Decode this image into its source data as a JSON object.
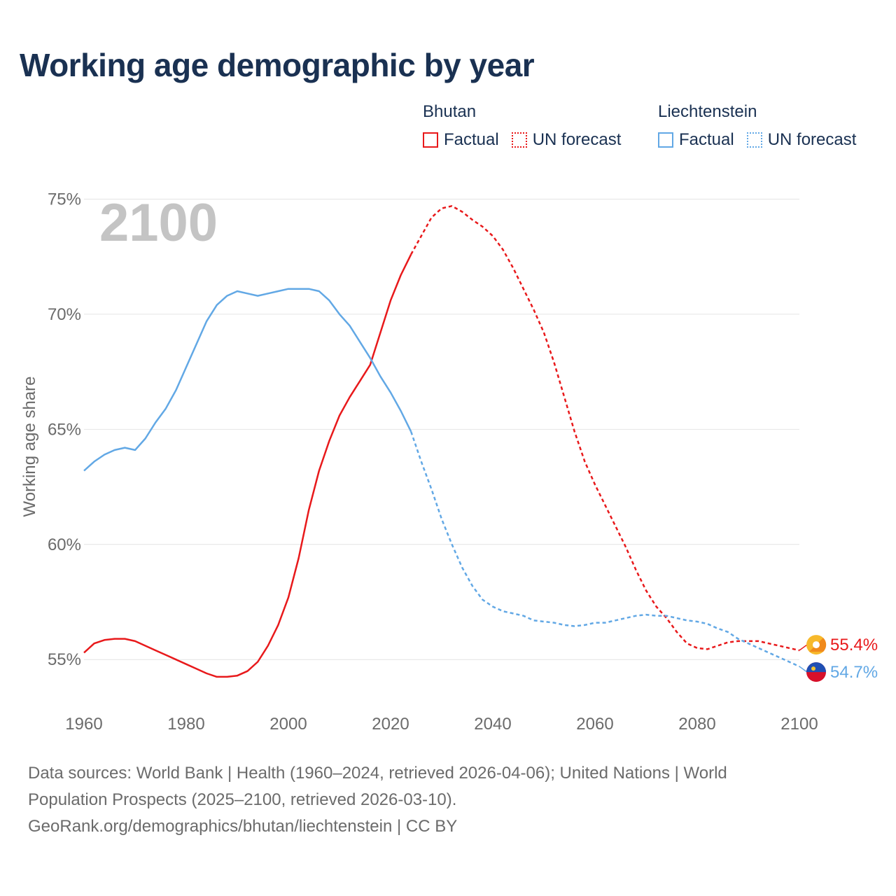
{
  "title": "Working age demographic by year",
  "legend": {
    "groups": [
      {
        "name": "Bhutan",
        "color": "#e8191b",
        "factual": "Factual",
        "forecast": "UN forecast"
      },
      {
        "name": "Liechtenstein",
        "color": "#62a8e5",
        "factual": "Factual",
        "forecast": "UN forecast"
      }
    ]
  },
  "footer": {
    "line1": "Data sources: World Bank | Health (1960–2024, retrieved 2026-04-06); United Nations | World",
    "line2": "Population Prospects (2025–2100, retrieved 2026-03-10).",
    "line3": "GeoRank.org/demographics/bhutan/liechtenstein | CC BY"
  },
  "chart_data": {
    "type": "line",
    "title": "Working age demographic by year",
    "year_watermark": "2100",
    "xlabel": "",
    "ylabel": "Working age share",
    "xlim": [
      1960,
      2100
    ],
    "ylim": [
      53,
      75.5
    ],
    "x_ticks": [
      1960,
      1980,
      2000,
      2020,
      2040,
      2060,
      2080,
      2100
    ],
    "y_ticks": [
      {
        "value": 55,
        "label": "55%"
      },
      {
        "value": 60,
        "label": "60%"
      },
      {
        "value": 65,
        "label": "65%"
      },
      {
        "value": 70,
        "label": "70%"
      },
      {
        "value": 75,
        "label": "75%"
      }
    ],
    "grid": true,
    "series": [
      {
        "name": "Bhutan",
        "color": "#e8191b",
        "end_label": "55.4%",
        "factual": [
          [
            1960,
            55.3
          ],
          [
            1962,
            55.7
          ],
          [
            1964,
            55.85
          ],
          [
            1966,
            55.9
          ],
          [
            1968,
            55.9
          ],
          [
            1970,
            55.8
          ],
          [
            1972,
            55.6
          ],
          [
            1974,
            55.4
          ],
          [
            1976,
            55.2
          ],
          [
            1978,
            55.0
          ],
          [
            1980,
            54.8
          ],
          [
            1982,
            54.6
          ],
          [
            1984,
            54.4
          ],
          [
            1986,
            54.25
          ],
          [
            1988,
            54.25
          ],
          [
            1990,
            54.3
          ],
          [
            1992,
            54.5
          ],
          [
            1994,
            54.9
          ],
          [
            1996,
            55.6
          ],
          [
            1998,
            56.5
          ],
          [
            2000,
            57.7
          ],
          [
            2002,
            59.4
          ],
          [
            2004,
            61.5
          ],
          [
            2006,
            63.2
          ],
          [
            2008,
            64.5
          ],
          [
            2010,
            65.6
          ],
          [
            2012,
            66.4
          ],
          [
            2014,
            67.1
          ],
          [
            2016,
            67.8
          ],
          [
            2018,
            69.2
          ],
          [
            2020,
            70.6
          ],
          [
            2022,
            71.7
          ],
          [
            2024,
            72.6
          ]
        ],
        "forecast": [
          [
            2024,
            72.6
          ],
          [
            2026,
            73.4
          ],
          [
            2028,
            74.2
          ],
          [
            2030,
            74.6
          ],
          [
            2032,
            74.7
          ],
          [
            2034,
            74.45
          ],
          [
            2036,
            74.1
          ],
          [
            2038,
            73.8
          ],
          [
            2040,
            73.4
          ],
          [
            2042,
            72.8
          ],
          [
            2044,
            72.0
          ],
          [
            2046,
            71.1
          ],
          [
            2048,
            70.2
          ],
          [
            2050,
            69.2
          ],
          [
            2052,
            67.9
          ],
          [
            2054,
            66.4
          ],
          [
            2056,
            64.9
          ],
          [
            2058,
            63.6
          ],
          [
            2060,
            62.6
          ],
          [
            2062,
            61.7
          ],
          [
            2064,
            60.8
          ],
          [
            2066,
            59.9
          ],
          [
            2068,
            58.9
          ],
          [
            2070,
            58.0
          ],
          [
            2072,
            57.3
          ],
          [
            2074,
            56.8
          ],
          [
            2076,
            56.2
          ],
          [
            2078,
            55.7
          ],
          [
            2080,
            55.5
          ],
          [
            2082,
            55.45
          ],
          [
            2084,
            55.6
          ],
          [
            2086,
            55.75
          ],
          [
            2088,
            55.8
          ],
          [
            2090,
            55.8
          ],
          [
            2092,
            55.8
          ],
          [
            2094,
            55.7
          ],
          [
            2096,
            55.6
          ],
          [
            2098,
            55.5
          ],
          [
            2100,
            55.4
          ]
        ]
      },
      {
        "name": "Liechtenstein",
        "color": "#62a8e5",
        "end_label": "54.7%",
        "factual": [
          [
            1960,
            63.2
          ],
          [
            1962,
            63.6
          ],
          [
            1964,
            63.9
          ],
          [
            1966,
            64.1
          ],
          [
            1968,
            64.2
          ],
          [
            1970,
            64.1
          ],
          [
            1972,
            64.6
          ],
          [
            1974,
            65.3
          ],
          [
            1976,
            65.9
          ],
          [
            1978,
            66.7
          ],
          [
            1980,
            67.7
          ],
          [
            1982,
            68.7
          ],
          [
            1984,
            69.7
          ],
          [
            1986,
            70.4
          ],
          [
            1988,
            70.8
          ],
          [
            1990,
            71.0
          ],
          [
            1992,
            70.9
          ],
          [
            1994,
            70.8
          ],
          [
            1996,
            70.9
          ],
          [
            1998,
            71.0
          ],
          [
            2000,
            71.1
          ],
          [
            2002,
            71.1
          ],
          [
            2004,
            71.1
          ],
          [
            2006,
            71.0
          ],
          [
            2008,
            70.6
          ],
          [
            2010,
            70.0
          ],
          [
            2012,
            69.5
          ],
          [
            2014,
            68.8
          ],
          [
            2016,
            68.1
          ],
          [
            2018,
            67.3
          ],
          [
            2020,
            66.6
          ],
          [
            2022,
            65.8
          ],
          [
            2024,
            64.9
          ]
        ],
        "forecast": [
          [
            2024,
            64.9
          ],
          [
            2026,
            63.6
          ],
          [
            2028,
            62.4
          ],
          [
            2030,
            61.1
          ],
          [
            2032,
            60.0
          ],
          [
            2034,
            59.0
          ],
          [
            2036,
            58.2
          ],
          [
            2038,
            57.6
          ],
          [
            2040,
            57.3
          ],
          [
            2042,
            57.1
          ],
          [
            2044,
            57.0
          ],
          [
            2046,
            56.9
          ],
          [
            2048,
            56.7
          ],
          [
            2050,
            56.65
          ],
          [
            2052,
            56.6
          ],
          [
            2054,
            56.5
          ],
          [
            2056,
            56.45
          ],
          [
            2058,
            56.5
          ],
          [
            2060,
            56.6
          ],
          [
            2062,
            56.6
          ],
          [
            2064,
            56.7
          ],
          [
            2066,
            56.8
          ],
          [
            2068,
            56.9
          ],
          [
            2070,
            56.95
          ],
          [
            2072,
            56.9
          ],
          [
            2074,
            56.9
          ],
          [
            2076,
            56.8
          ],
          [
            2078,
            56.7
          ],
          [
            2080,
            56.65
          ],
          [
            2082,
            56.55
          ],
          [
            2084,
            56.35
          ],
          [
            2086,
            56.2
          ],
          [
            2088,
            55.9
          ],
          [
            2090,
            55.7
          ],
          [
            2092,
            55.5
          ],
          [
            2094,
            55.3
          ],
          [
            2096,
            55.1
          ],
          [
            2098,
            54.9
          ],
          [
            2100,
            54.7
          ]
        ]
      }
    ]
  }
}
